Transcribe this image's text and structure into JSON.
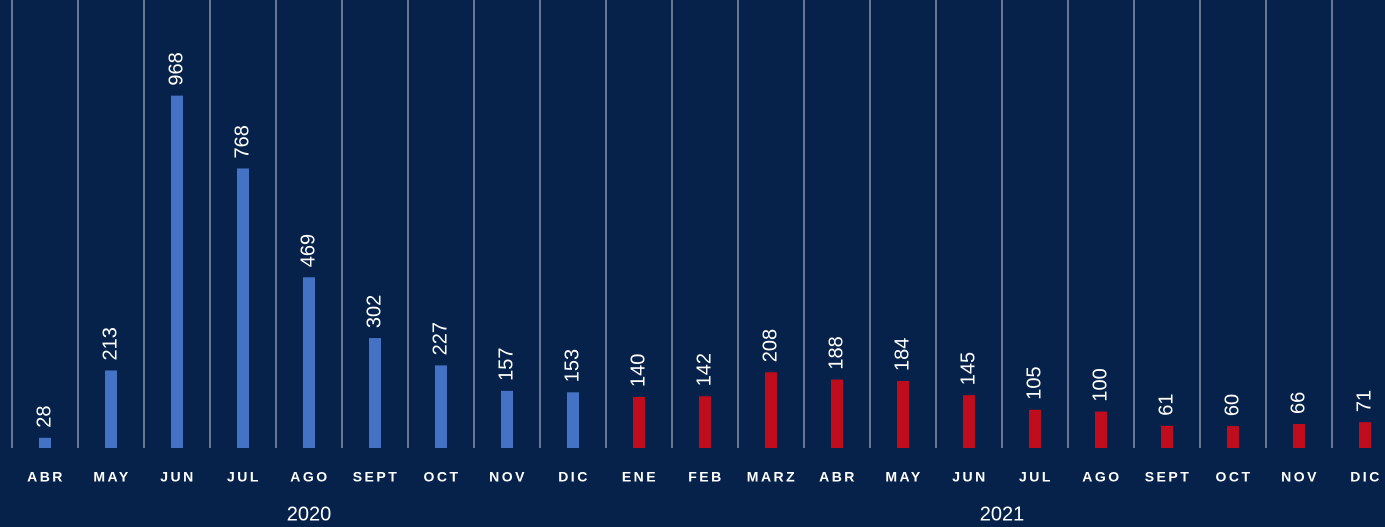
{
  "chart_data": {
    "type": "bar",
    "groups": [
      {
        "label": "2020",
        "color": "#4472c4",
        "categories": [
          "ABR",
          "MAY",
          "JUN",
          "JUL",
          "AGO",
          "SEPT",
          "OCT",
          "NOV",
          "DIC"
        ],
        "values": [
          28,
          213,
          968,
          768,
          469,
          302,
          227,
          157,
          153
        ]
      },
      {
        "label": "2021",
        "color": "#c00d1e",
        "categories": [
          "ENE",
          "FEB",
          "MARZ",
          "ABR",
          "MAY",
          "JUN",
          "JUL",
          "AGO",
          "SEPT",
          "OCT",
          "NOV",
          "DIC"
        ],
        "values": [
          140,
          142,
          208,
          188,
          184,
          145,
          105,
          100,
          61,
          60,
          66,
          71
        ]
      }
    ],
    "ylim": [
      0,
      1000
    ]
  }
}
